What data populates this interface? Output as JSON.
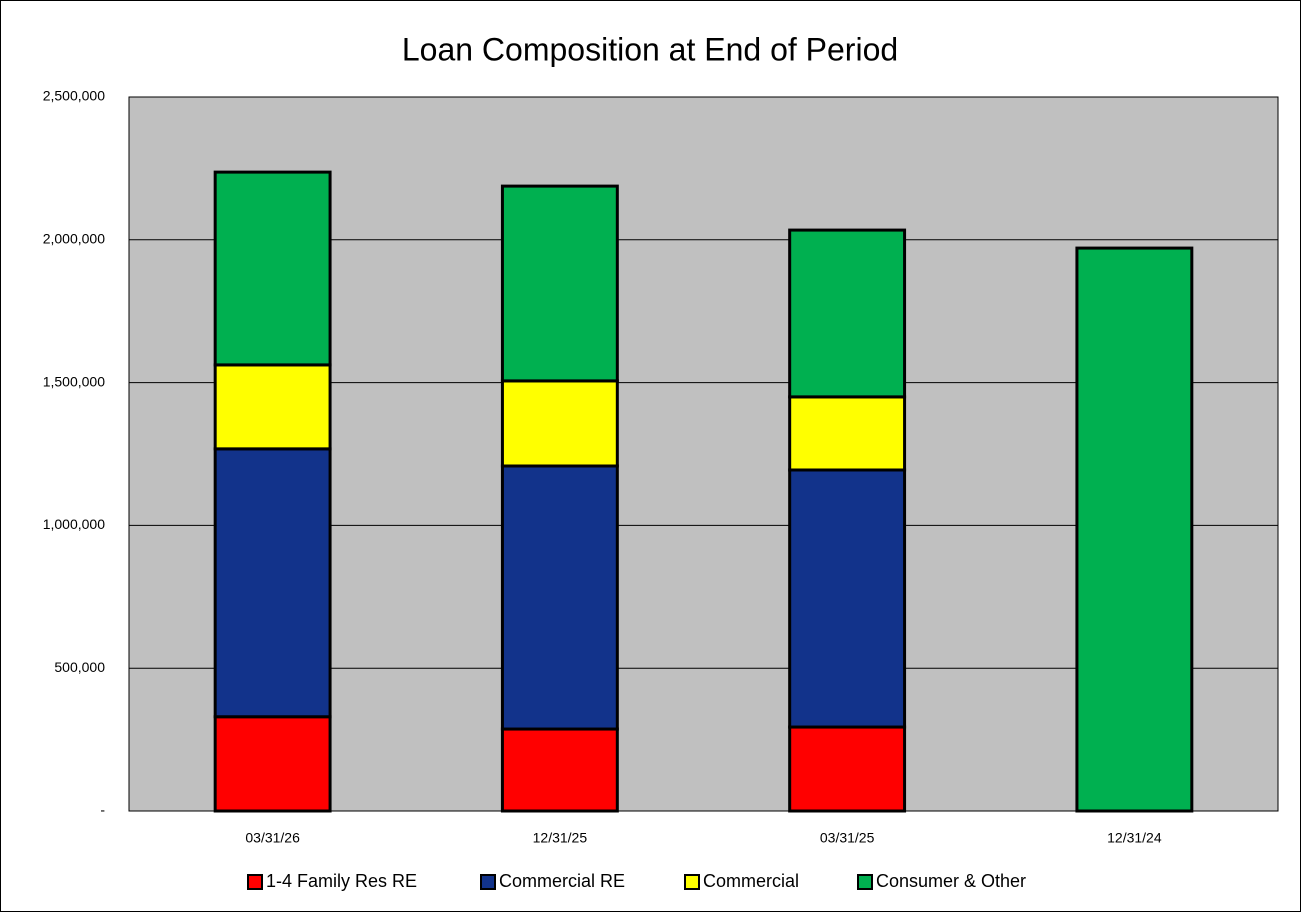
{
  "chart_data": {
    "type": "bar",
    "stacked": true,
    "title": "Loan Composition at End of Period",
    "categories": [
      "03/31/26",
      "12/31/25",
      "03/31/25",
      "12/31/24"
    ],
    "series": [
      {
        "name": "1-4 Family Res RE",
        "color": "#ff0000",
        "values": [
          330000,
          287000,
          294000,
          0
        ]
      },
      {
        "name": "Commercial RE",
        "color": "#12338b",
        "values": [
          938000,
          921000,
          900000,
          0
        ]
      },
      {
        "name": "Commercial",
        "color": "#ffff00",
        "values": [
          294000,
          298000,
          256000,
          0
        ]
      },
      {
        "name": "Consumer & Other",
        "color": "#00b050",
        "values": [
          675000,
          682000,
          584000,
          1971000
        ]
      }
    ],
    "ylim": [
      0,
      2500000
    ],
    "yticks": [
      {
        "value": 0,
        "label": "-"
      },
      {
        "value": 500000,
        "label": "500,000"
      },
      {
        "value": 1000000,
        "label": "1,000,000"
      },
      {
        "value": 1500000,
        "label": "1,500,000"
      },
      {
        "value": 2000000,
        "label": "2,000,000"
      },
      {
        "value": 2500000,
        "label": "2,500,000"
      }
    ],
    "grid": true,
    "legend": "bottom",
    "plot_background": "#c0c0c0"
  }
}
